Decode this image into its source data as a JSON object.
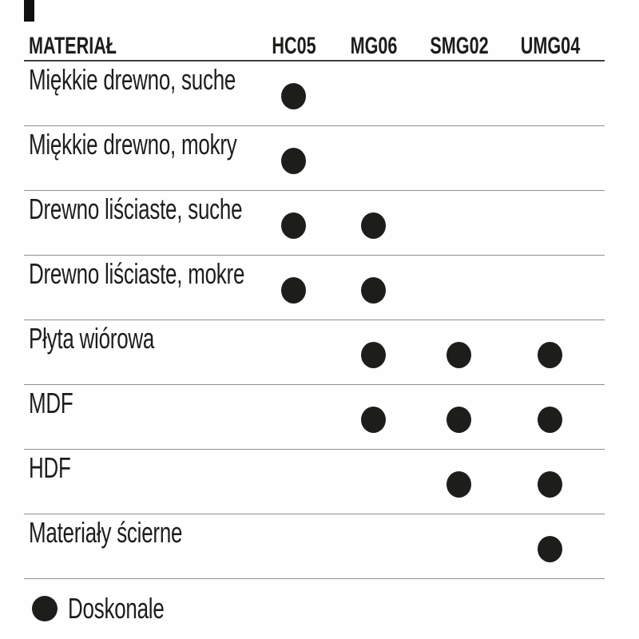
{
  "chart_data": {
    "type": "table",
    "corner_label": "MATERIAŁ",
    "columns": [
      "HC05",
      "MG06",
      "SMG02",
      "UMG04"
    ],
    "rows": [
      {
        "label": "Miękkie drewno, suche",
        "ratings": [
          1,
          0,
          0,
          0
        ]
      },
      {
        "label": "Miękkie drewno, mokry",
        "ratings": [
          1,
          0,
          0,
          0
        ]
      },
      {
        "label": "Drewno liściaste, suche",
        "ratings": [
          1,
          1,
          0,
          0
        ]
      },
      {
        "label": "Drewno liściaste, mokre",
        "ratings": [
          1,
          1,
          0,
          0
        ]
      },
      {
        "label": "Płyta wiórowa",
        "ratings": [
          0,
          1,
          1,
          1
        ]
      },
      {
        "label": "MDF",
        "ratings": [
          0,
          1,
          1,
          1
        ]
      },
      {
        "label": "HDF",
        "ratings": [
          0,
          0,
          1,
          1
        ]
      },
      {
        "label": "Materiały ścierne",
        "ratings": [
          0,
          0,
          0,
          1
        ]
      }
    ],
    "legend": [
      {
        "symbol": "filled-dot",
        "label": "Doskonale"
      }
    ]
  },
  "colors": {
    "dot": "#1d1d1b",
    "text": "#1d1d1b",
    "header_line": "#3e3e3e",
    "row_line": "#8f8f8f",
    "background": "#fefefe"
  }
}
